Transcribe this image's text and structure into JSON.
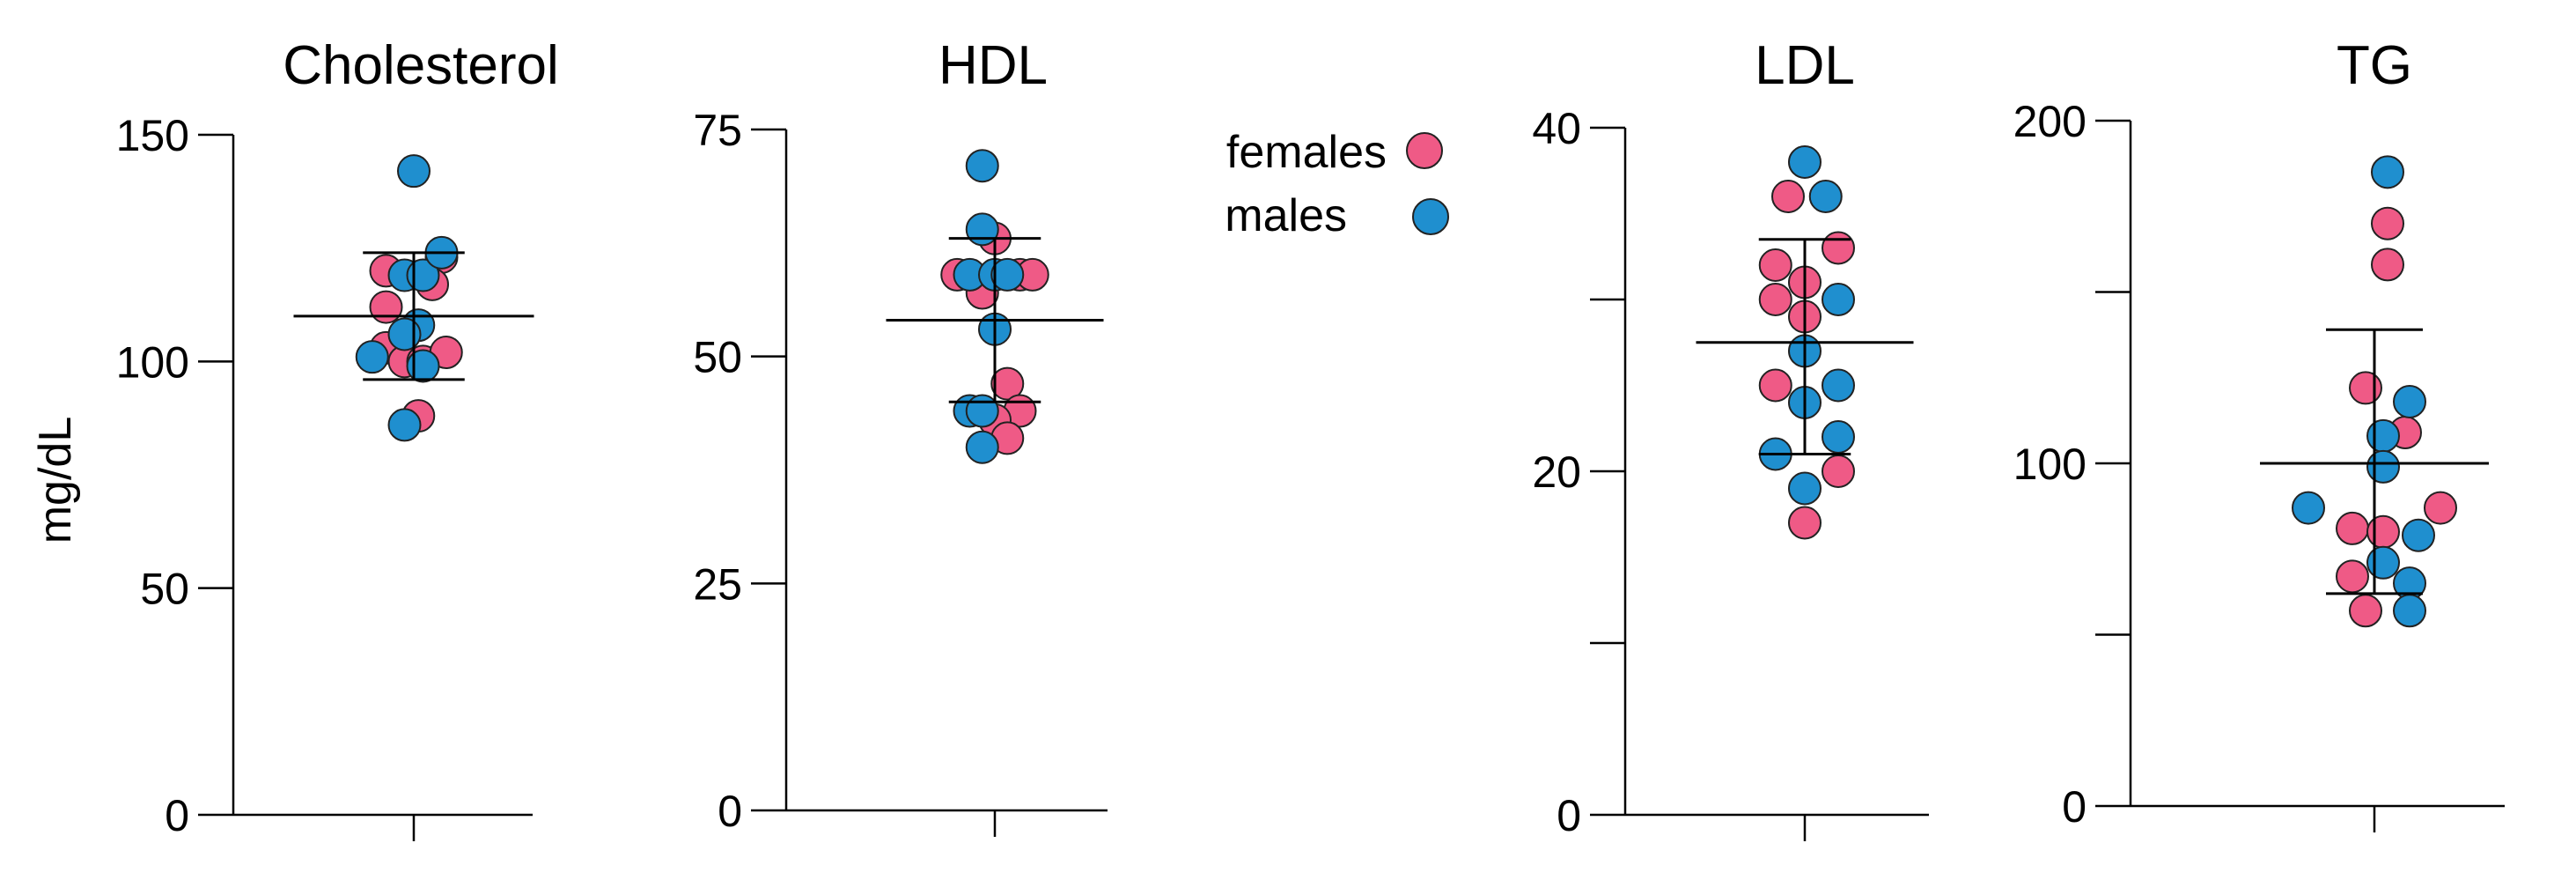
{
  "colors": {
    "female": "#ef5a86",
    "male": "#1f8fcf",
    "axis": "#000000",
    "dot_stroke": "#222222"
  },
  "ylabel": "mg/dL",
  "legend": {
    "female_label": "females",
    "male_label": "males"
  },
  "chart_data": [
    {
      "type": "scatter",
      "title": "Cholesterol",
      "ylabel": "mg/dL",
      "ylim": [
        0,
        150
      ],
      "yticks": [
        0,
        50,
        100,
        150
      ],
      "mean": 110,
      "sd_upper": 124,
      "sd_lower": 96,
      "series": [
        {
          "name": "females",
          "points": [
            [
              -0.3,
              120
            ],
            [
              -0.3,
              112
            ],
            [
              0.3,
              123
            ],
            [
              0.2,
              117
            ],
            [
              -0.3,
              103
            ],
            [
              -0.1,
              100
            ],
            [
              0.1,
              100
            ],
            [
              0.35,
              102
            ],
            [
              0.05,
              88
            ]
          ]
        },
        {
          "name": "males",
          "points": [
            [
              0,
              142
            ],
            [
              -0.1,
              119
            ],
            [
              0.1,
              119
            ],
            [
              0.3,
              124
            ],
            [
              0.05,
              108
            ],
            [
              -0.1,
              106
            ],
            [
              -0.45,
              101
            ],
            [
              0.1,
              99
            ],
            [
              -0.1,
              86
            ]
          ]
        }
      ]
    },
    {
      "type": "scatter",
      "title": "HDL",
      "ylabel": "",
      "ylim": [
        0,
        75
      ],
      "yticks": [
        0,
        25,
        50,
        75
      ],
      "mean": 54,
      "sd_upper": 63,
      "sd_lower": 45,
      "series": [
        {
          "name": "females",
          "points": [
            [
              -0.45,
              59
            ],
            [
              0.3,
              59
            ],
            [
              0.45,
              59
            ],
            [
              0,
              63
            ],
            [
              -0.15,
              57
            ],
            [
              0.15,
              47
            ],
            [
              0.3,
              44
            ],
            [
              0,
              43
            ],
            [
              0.15,
              41
            ]
          ]
        },
        {
          "name": "males",
          "points": [
            [
              -0.15,
              71
            ],
            [
              -0.15,
              64
            ],
            [
              -0.3,
              59
            ],
            [
              0,
              59
            ],
            [
              0.15,
              59
            ],
            [
              0,
              53
            ],
            [
              -0.3,
              44
            ],
            [
              -0.15,
              44
            ],
            [
              -0.15,
              40
            ]
          ]
        }
      ]
    },
    {
      "type": "scatter",
      "title": "LDL",
      "ylabel": "",
      "ylim": [
        0,
        40
      ],
      "yticks": [
        0,
        10,
        20,
        30,
        40
      ],
      "ytick_labels": [
        "0",
        "",
        "20",
        "",
        "40"
      ],
      "mean": 27.5,
      "sd_upper": 33.5,
      "sd_lower": 21,
      "series": [
        {
          "name": "females",
          "points": [
            [
              -0.2,
              36
            ],
            [
              -0.35,
              32
            ],
            [
              0.4,
              33
            ],
            [
              -0.35,
              30
            ],
            [
              0,
              31
            ],
            [
              0,
              29
            ],
            [
              -0.35,
              25
            ],
            [
              0.4,
              20
            ],
            [
              0,
              17
            ]
          ]
        },
        {
          "name": "males",
          "points": [
            [
              0,
              38
            ],
            [
              0.25,
              36
            ],
            [
              0.4,
              30
            ],
            [
              0,
              27
            ],
            [
              0.4,
              25
            ],
            [
              0,
              24
            ],
            [
              0.4,
              22
            ],
            [
              -0.35,
              21
            ],
            [
              0,
              19
            ]
          ]
        }
      ]
    },
    {
      "type": "scatter",
      "title": "TG",
      "ylabel": "",
      "ylim": [
        0,
        200
      ],
      "yticks": [
        0,
        50,
        100,
        150,
        200
      ],
      "ytick_labels": [
        "0",
        "",
        "100",
        "",
        "200"
      ],
      "mean": 100,
      "sd_upper": 139,
      "sd_lower": 62,
      "series": [
        {
          "name": "females",
          "points": [
            [
              0.15,
              170
            ],
            [
              0.15,
              158
            ],
            [
              -0.1,
              122
            ],
            [
              0.35,
              109
            ],
            [
              0.75,
              87
            ],
            [
              -0.25,
              81
            ],
            [
              0.1,
              80
            ],
            [
              -0.25,
              67
            ],
            [
              -0.1,
              57
            ]
          ]
        },
        {
          "name": "males",
          "points": [
            [
              0.15,
              185
            ],
            [
              0.4,
              118
            ],
            [
              0.1,
              108
            ],
            [
              0.1,
              99
            ],
            [
              -0.75,
              87
            ],
            [
              0.5,
              79
            ],
            [
              0.1,
              71
            ],
            [
              0.4,
              65
            ],
            [
              0.4,
              57
            ]
          ]
        }
      ]
    }
  ]
}
